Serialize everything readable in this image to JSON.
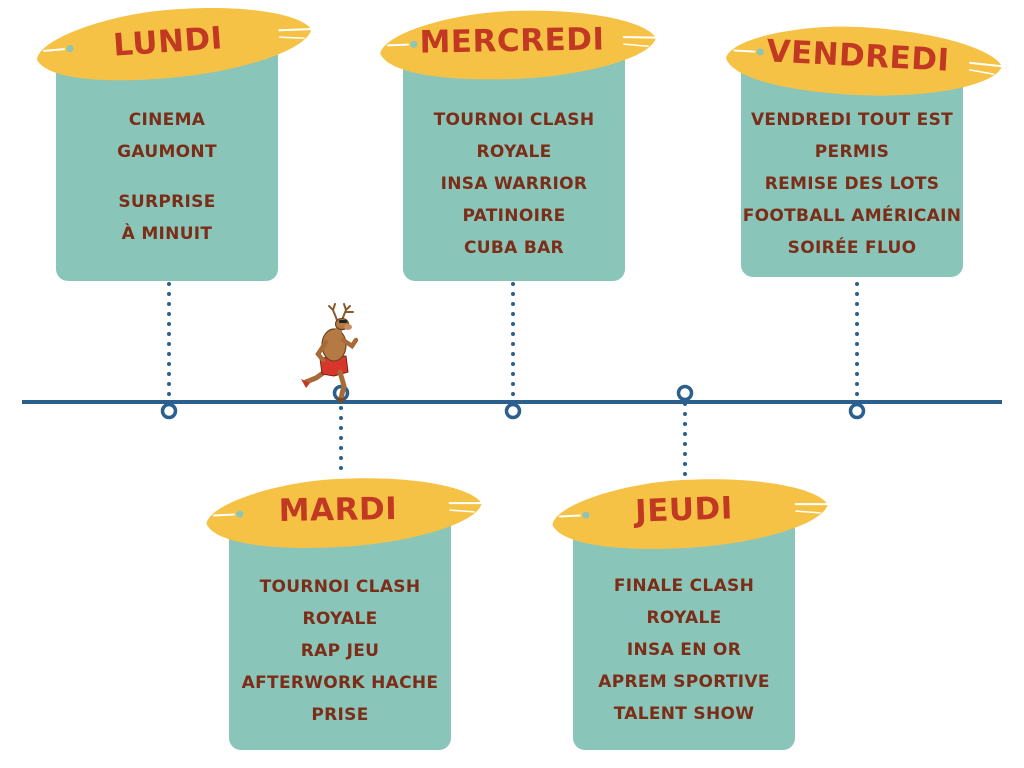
{
  "colors": {
    "timeline": "#2b5f8e",
    "card": "#8ac5b9",
    "surfboard": "#f6c246",
    "day_title": "#c13922",
    "card_text": "#7b2d18"
  },
  "days": [
    {
      "title": "LUNDI",
      "lines": [
        "CINEMA",
        "GAUMONT",
        "",
        "SURPRISE",
        "À MINUIT"
      ]
    },
    {
      "title": "MARDI",
      "lines": [
        "TOURNOI CLASH",
        "ROYALE",
        "RAP JEU",
        "AFTERWORK HACHE",
        "PRISE"
      ]
    },
    {
      "title": "MERCREDI",
      "lines": [
        "TOURNOI CLASH",
        "ROYALE",
        "INSA WARRIOR",
        "PATINOIRE",
        "CUBA BAR"
      ]
    },
    {
      "title": "JEUDI",
      "lines": [
        "FINALE CLASH",
        "ROYALE",
        "INSA EN OR",
        "APREM SPORTIVE",
        "TALENT SHOW"
      ]
    },
    {
      "title": "VENDREDI",
      "lines": [
        "VENDREDI TOUT EST",
        "PERMIS",
        "REMISE DES LOTS",
        "FOOTBALL AMÉRICAIN",
        "SOIRÉE FLUO"
      ]
    }
  ],
  "mascot": {
    "name": "deer-runner-mascot"
  }
}
